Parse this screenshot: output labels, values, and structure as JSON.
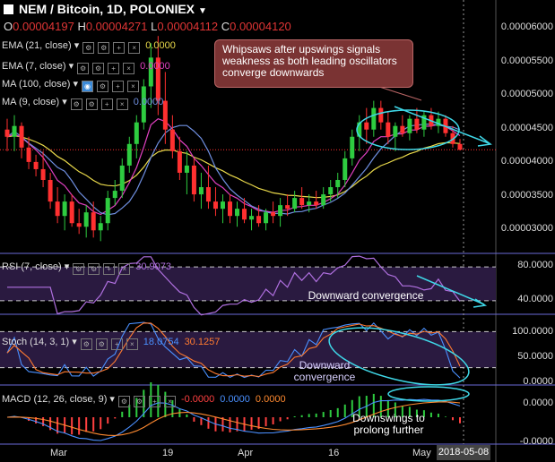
{
  "header": {
    "title": "NEM / Bitcoin, 1D, POLONIEX",
    "ohlc": [
      {
        "key": "O",
        "value": "0.00004197"
      },
      {
        "key": "H",
        "value": "0.00004271"
      },
      {
        "key": "L",
        "value": "0.00004112"
      },
      {
        "key": "C",
        "value": "0.00004120"
      }
    ]
  },
  "indicators": {
    "ema21": {
      "label": "EMA (21, close)",
      "value": "0.0000",
      "color": "#e8d84a"
    },
    "ema7": {
      "label": "EMA (7, close)",
      "value": "0.0000",
      "color": "#e040c0"
    },
    "ma100": {
      "label": "MA (100, close)",
      "value": "",
      "color": "#4a6fd0"
    },
    "ma9": {
      "label": "MA (9, close)",
      "value": "0.0000",
      "color": "#6f8fe0"
    },
    "rsi": {
      "label": "RSI (7, close)",
      "value": "30.9073",
      "color": "#b070e0"
    },
    "stoch": {
      "label": "Stoch (14, 3, 1)",
      "value_k": "18.0754",
      "value_d": "30.1257",
      "color_k": "#4a90ff",
      "color_d": "#ff7a30"
    },
    "macd": {
      "label": "MACD (12, 26, close, 9)",
      "value_hist": "-0.0000",
      "value_macd": "0.0000",
      "value_signal": "0.0000",
      "color_hist": "#ff4040",
      "color_macd": "#4a90ff",
      "color_signal": "#ff8a30"
    }
  },
  "annotations": {
    "note": "Whipsaws after upswings signals weakness as both leading oscillators converge downwards",
    "rsi_label": "Downward convergence",
    "stoch_label": "Downward convergence",
    "macd_label": "Downswings to prolong further"
  },
  "axes": {
    "price_ticks": [
      "0.00006000",
      "0.00005500",
      "0.00005000",
      "0.00004500",
      "0.00004000",
      "0.00003500",
      "0.00003000"
    ],
    "rsi_ticks": [
      "80.0000",
      "40.0000"
    ],
    "stoch_ticks": [
      "100.0000",
      "50.0000",
      "0.0000"
    ],
    "macd_ticks": [
      "0.0000",
      "-0.0000"
    ],
    "x_ticks": [
      "Mar",
      "19",
      "Apr",
      "16",
      "May"
    ],
    "current_date": "2018-05-08"
  },
  "colors": {
    "up": "#2ecc40",
    "down": "#ff3030",
    "background": "#000000",
    "cyan": "#3fd8e8"
  },
  "chart_data": {
    "type": "candlestick",
    "title": "NEM / Bitcoin, 1D, POLONIEX",
    "ylim": [
      2.68e-05,
      6.2e-05
    ],
    "candles": [
      [
        4.4,
        4.55,
        4.1,
        4.3
      ],
      [
        4.3,
        4.6,
        4.1,
        4.45
      ],
      [
        4.45,
        4.5,
        4.0,
        4.15
      ],
      [
        4.15,
        4.3,
        3.85,
        3.95
      ],
      [
        3.95,
        4.05,
        3.75,
        3.85
      ],
      [
        3.85,
        4.1,
        3.6,
        3.7
      ],
      [
        3.7,
        3.8,
        3.3,
        3.4
      ],
      [
        3.4,
        3.6,
        3.1,
        3.2
      ],
      [
        3.2,
        3.5,
        3.0,
        3.4
      ],
      [
        3.4,
        3.5,
        3.05,
        3.1
      ],
      [
        3.1,
        3.3,
        2.95,
        3.05
      ],
      [
        3.05,
        3.35,
        2.9,
        3.25
      ],
      [
        3.25,
        3.4,
        2.9,
        3.0
      ],
      [
        3.0,
        3.2,
        2.85,
        3.1
      ],
      [
        3.1,
        3.55,
        3.0,
        3.45
      ],
      [
        3.45,
        3.7,
        3.35,
        3.55
      ],
      [
        3.55,
        4.0,
        3.45,
        3.9
      ],
      [
        3.9,
        4.3,
        3.8,
        4.2
      ],
      [
        4.2,
        4.6,
        4.0,
        4.5
      ],
      [
        4.5,
        5.1,
        4.4,
        5.0
      ],
      [
        5.0,
        5.6,
        4.7,
        5.4
      ],
      [
        5.4,
        5.7,
        4.6,
        4.8
      ],
      [
        4.8,
        5.2,
        4.2,
        4.4
      ],
      [
        4.4,
        4.6,
        4.0,
        4.1
      ],
      [
        4.1,
        4.3,
        3.7,
        3.8
      ],
      [
        3.8,
        4.1,
        3.5,
        3.9
      ],
      [
        3.9,
        4.0,
        3.4,
        3.5
      ],
      [
        3.5,
        3.8,
        3.3,
        3.6
      ],
      [
        3.6,
        3.9,
        3.3,
        3.4
      ],
      [
        3.4,
        3.6,
        3.2,
        3.3
      ],
      [
        3.3,
        3.5,
        3.1,
        3.4
      ],
      [
        3.4,
        3.5,
        3.1,
        3.2
      ],
      [
        3.2,
        3.4,
        3.05,
        3.3
      ],
      [
        3.3,
        3.45,
        3.1,
        3.15
      ],
      [
        3.15,
        3.3,
        3.0,
        3.2
      ],
      [
        3.2,
        3.35,
        3.05,
        3.1
      ],
      [
        3.1,
        3.3,
        3.0,
        3.25
      ],
      [
        3.25,
        3.4,
        3.1,
        3.2
      ],
      [
        3.2,
        3.45,
        3.05,
        3.35
      ],
      [
        3.35,
        3.5,
        3.2,
        3.3
      ],
      [
        3.3,
        3.55,
        3.25,
        3.45
      ],
      [
        3.45,
        3.6,
        3.3,
        3.35
      ],
      [
        3.35,
        3.5,
        3.25,
        3.4
      ],
      [
        3.4,
        3.55,
        3.3,
        3.35
      ],
      [
        3.35,
        3.6,
        3.3,
        3.5
      ],
      [
        3.5,
        3.7,
        3.4,
        3.6
      ],
      [
        3.6,
        3.8,
        3.45,
        3.7
      ],
      [
        3.7,
        4.1,
        3.6,
        4.0
      ],
      [
        4.0,
        4.4,
        3.9,
        4.3
      ],
      [
        4.3,
        4.6,
        4.1,
        4.5
      ],
      [
        4.5,
        4.7,
        4.2,
        4.4
      ],
      [
        4.4,
        4.8,
        4.3,
        4.7
      ],
      [
        4.7,
        4.8,
        4.4,
        4.5
      ],
      [
        4.5,
        4.65,
        4.2,
        4.3
      ],
      [
        4.3,
        4.5,
        4.1,
        4.45
      ],
      [
        4.45,
        4.6,
        4.3,
        4.35
      ],
      [
        4.35,
        4.6,
        4.25,
        4.55
      ],
      [
        4.55,
        4.7,
        4.35,
        4.4
      ],
      [
        4.4,
        4.65,
        4.3,
        4.6
      ],
      [
        4.6,
        4.7,
        4.4,
        4.45
      ],
      [
        4.45,
        4.65,
        4.35,
        4.55
      ],
      [
        4.55,
        4.6,
        4.3,
        4.35
      ],
      [
        4.35,
        4.45,
        4.15,
        4.2
      ],
      [
        4.2,
        4.27,
        4.11,
        4.12
      ]
    ]
  }
}
